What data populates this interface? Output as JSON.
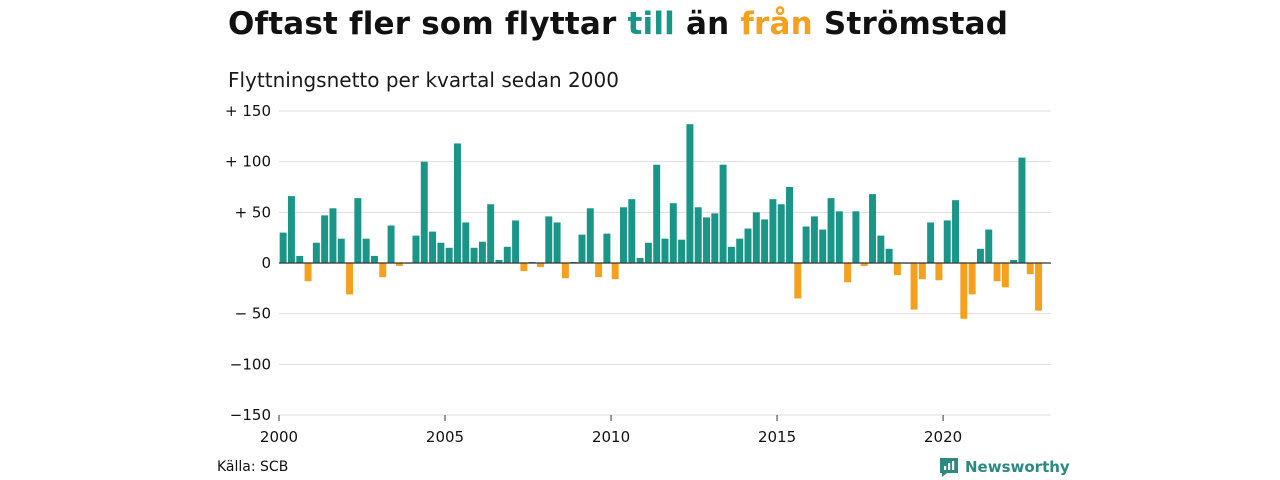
{
  "title": {
    "part1": "Oftast fler som flyttar ",
    "till": "till",
    "part2": " än ",
    "fran": "från",
    "part3": " Strömstad"
  },
  "subtitle": "Flyttningsnetto per kvartal sedan 2000",
  "source": "Källa: SCB",
  "brand": {
    "name": "Newsworthy",
    "icon": "newsworthy-logo-icon"
  },
  "colors": {
    "positive": "#1a9688",
    "negative": "#f5a01f",
    "title_till": "#1a9688",
    "title_fran": "#f5a01f",
    "gridline": "#dddddd",
    "zero_line": "#333333"
  },
  "chart_data": {
    "type": "bar",
    "title": "Oftast fler som flyttar till än från Strömstad",
    "subtitle": "Flyttningsnetto per kvartal sedan 2000",
    "xlabel": "",
    "ylabel": "",
    "ylim": [
      -150,
      150
    ],
    "xlim": [
      2000,
      2023.25
    ],
    "grid": true,
    "yticks": [
      {
        "value": 150,
        "label": "+ 150"
      },
      {
        "value": 100,
        "label": "+ 100"
      },
      {
        "value": 50,
        "label": "+  50"
      },
      {
        "value": 0,
        "label": "0"
      },
      {
        "value": -50,
        "label": "− 50"
      },
      {
        "value": -100,
        "label": "−100"
      },
      {
        "value": -150,
        "label": "−150"
      }
    ],
    "xticks": [
      {
        "value": 2000,
        "label": "2000"
      },
      {
        "value": 2005,
        "label": "2005"
      },
      {
        "value": 2010,
        "label": "2010"
      },
      {
        "value": 2015,
        "label": "2015"
      },
      {
        "value": 2020,
        "label": "2020"
      }
    ],
    "period_start_year": 2000,
    "periods_per_year": 4,
    "values": [
      30,
      66,
      7,
      -18,
      20,
      47,
      54,
      24,
      -31,
      64,
      24,
      7,
      -14,
      37,
      -3,
      0,
      27,
      100,
      31,
      20,
      15,
      118,
      40,
      15,
      21,
      58,
      3,
      16,
      42,
      -8,
      1,
      -4,
      46,
      40,
      -15,
      1,
      28,
      54,
      -14,
      29,
      -16,
      55,
      63,
      5,
      20,
      97,
      24,
      59,
      23,
      137,
      55,
      45,
      49,
      97,
      16,
      24,
      34,
      50,
      43,
      63,
      58,
      75,
      -35,
      36,
      46,
      33,
      64,
      51,
      -19,
      51,
      -3,
      68,
      27,
      14,
      -12,
      0,
      -46,
      -16,
      40,
      -17,
      42,
      62,
      -55,
      -31,
      14,
      33,
      -18,
      -24,
      3,
      104,
      -11,
      -47
    ]
  }
}
